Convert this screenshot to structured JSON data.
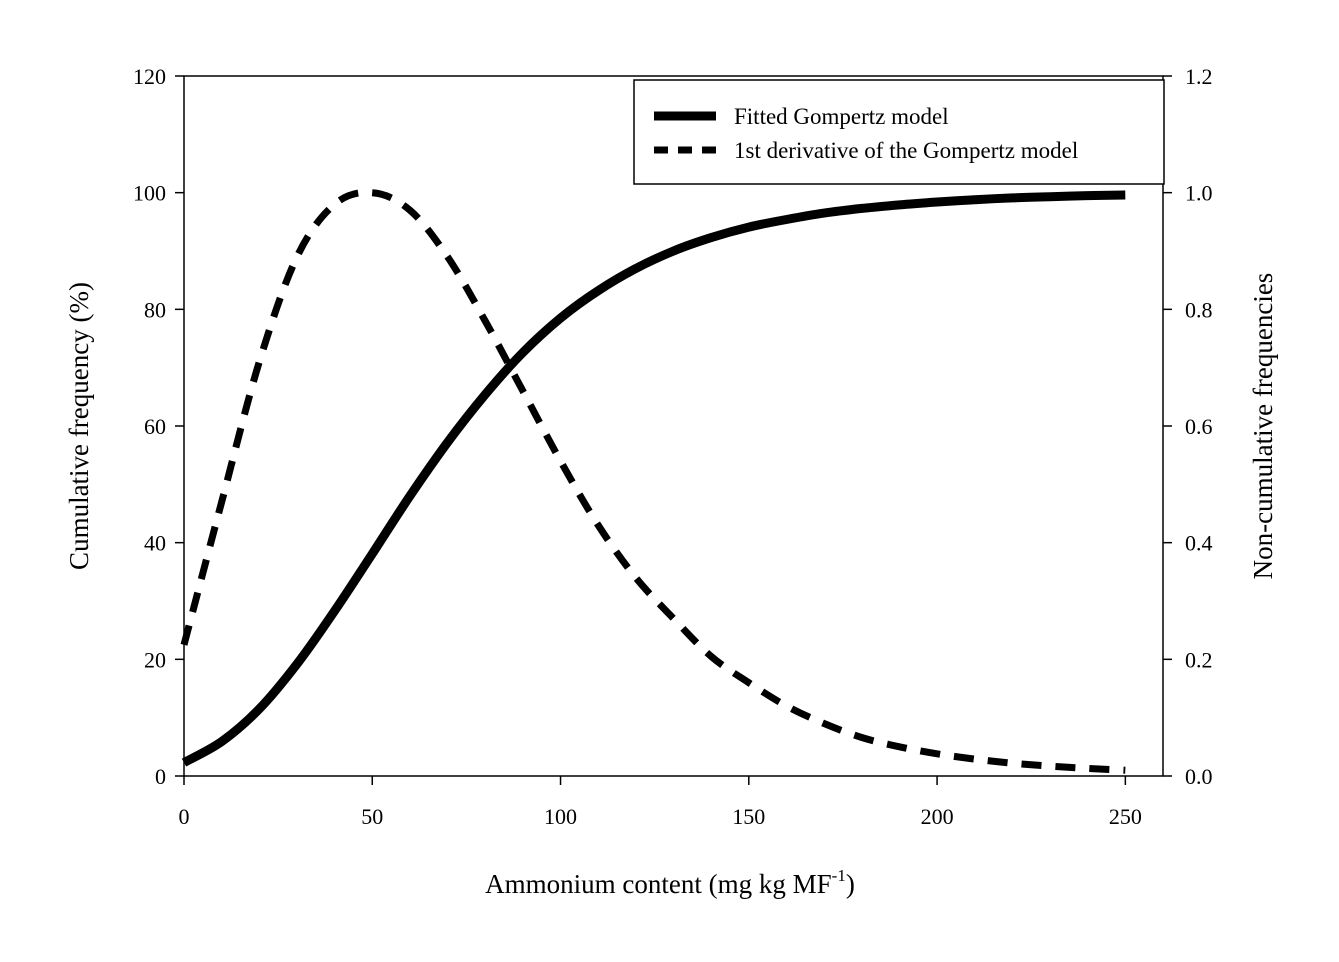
{
  "chart_data": {
    "type": "line",
    "title": "",
    "xlabel": "Ammonium content (mg kg  MF",
    "xlabel_sup": "-1",
    "xlabel_end": ")",
    "ylabel": "Cumulative frequency (%)",
    "y2label": "Non-cumulative frequencies",
    "xlim": [
      0,
      260
    ],
    "ylim": [
      0,
      120
    ],
    "y2lim": [
      0,
      1.2
    ],
    "x_ticks": [
      0,
      50,
      100,
      150,
      200,
      250
    ],
    "x_tick_labels": [
      "0",
      "50",
      "100",
      "150",
      "200",
      "250"
    ],
    "y_ticks": [
      0,
      20,
      40,
      60,
      80,
      100,
      120
    ],
    "y_tick_labels": [
      "0",
      "20",
      "40",
      "60",
      "80",
      "100",
      "120"
    ],
    "y2_ticks": [
      0,
      0.2,
      0.4,
      0.6,
      0.8,
      1.0,
      1.2
    ],
    "y2_tick_labels": [
      "0.0",
      "0.2",
      "0.4",
      "0.6",
      "0.8",
      "1.0",
      "1.2"
    ],
    "grid": false,
    "legend_position": "top-right",
    "x": [
      0,
      10,
      20,
      30,
      40,
      50,
      60,
      70,
      80,
      90,
      100,
      110,
      120,
      130,
      140,
      150,
      160,
      170,
      180,
      190,
      200,
      210,
      220,
      230,
      240,
      250
    ],
    "series": [
      {
        "name": "Fitted Gompertz model",
        "axis": "left",
        "style": "solid",
        "color": "#000000",
        "values": [
          2.3,
          5.9,
          11.5,
          19.2,
          28.3,
          38.1,
          48.0,
          57.2,
          65.4,
          72.6,
          78.5,
          83.2,
          87.0,
          90.0,
          92.3,
          94.1,
          95.4,
          96.5,
          97.3,
          97.9,
          98.4,
          98.8,
          99.1,
          99.3,
          99.5,
          99.6
        ]
      },
      {
        "name": "1st derivative of the Gompertz model",
        "axis": "right",
        "style": "dashed",
        "color": "#000000",
        "values": [
          0.225,
          0.47,
          0.71,
          0.89,
          0.98,
          1.0,
          0.97,
          0.89,
          0.78,
          0.66,
          0.54,
          0.43,
          0.34,
          0.27,
          0.205,
          0.16,
          0.12,
          0.09,
          0.066,
          0.05,
          0.038,
          0.029,
          0.022,
          0.017,
          0.013,
          0.01
        ]
      }
    ]
  }
}
